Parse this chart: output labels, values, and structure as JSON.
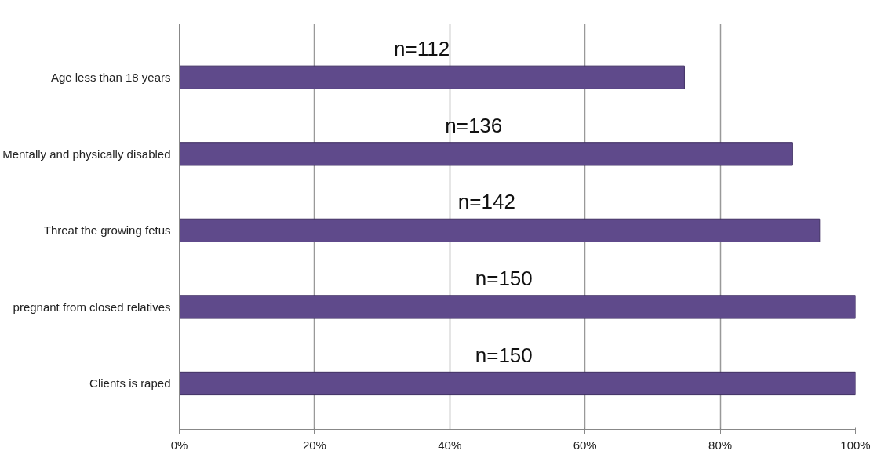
{
  "chart_data": {
    "type": "bar",
    "orientation": "horizontal",
    "categories": [
      "Age less than 18 years",
      "Mentally and physically disabled",
      "Threat the growing fetus",
      "pregnant from closed relatives",
      "Clients is raped"
    ],
    "values": [
      74.7,
      90.7,
      94.7,
      100,
      100
    ],
    "annotations": [
      "n=112",
      "n=136",
      "n=142",
      "n=150",
      "n=150"
    ],
    "color": "#5f4a8b",
    "xlim": [
      0,
      100
    ],
    "xticks": [
      {
        "value": 0,
        "label": "0%"
      },
      {
        "value": 20,
        "label": "20%"
      },
      {
        "value": 40,
        "label": "40%"
      },
      {
        "value": 60,
        "label": "60%"
      },
      {
        "value": 80,
        "label": "80%"
      },
      {
        "value": 100,
        "label": "100%"
      }
    ],
    "grid": "x"
  }
}
